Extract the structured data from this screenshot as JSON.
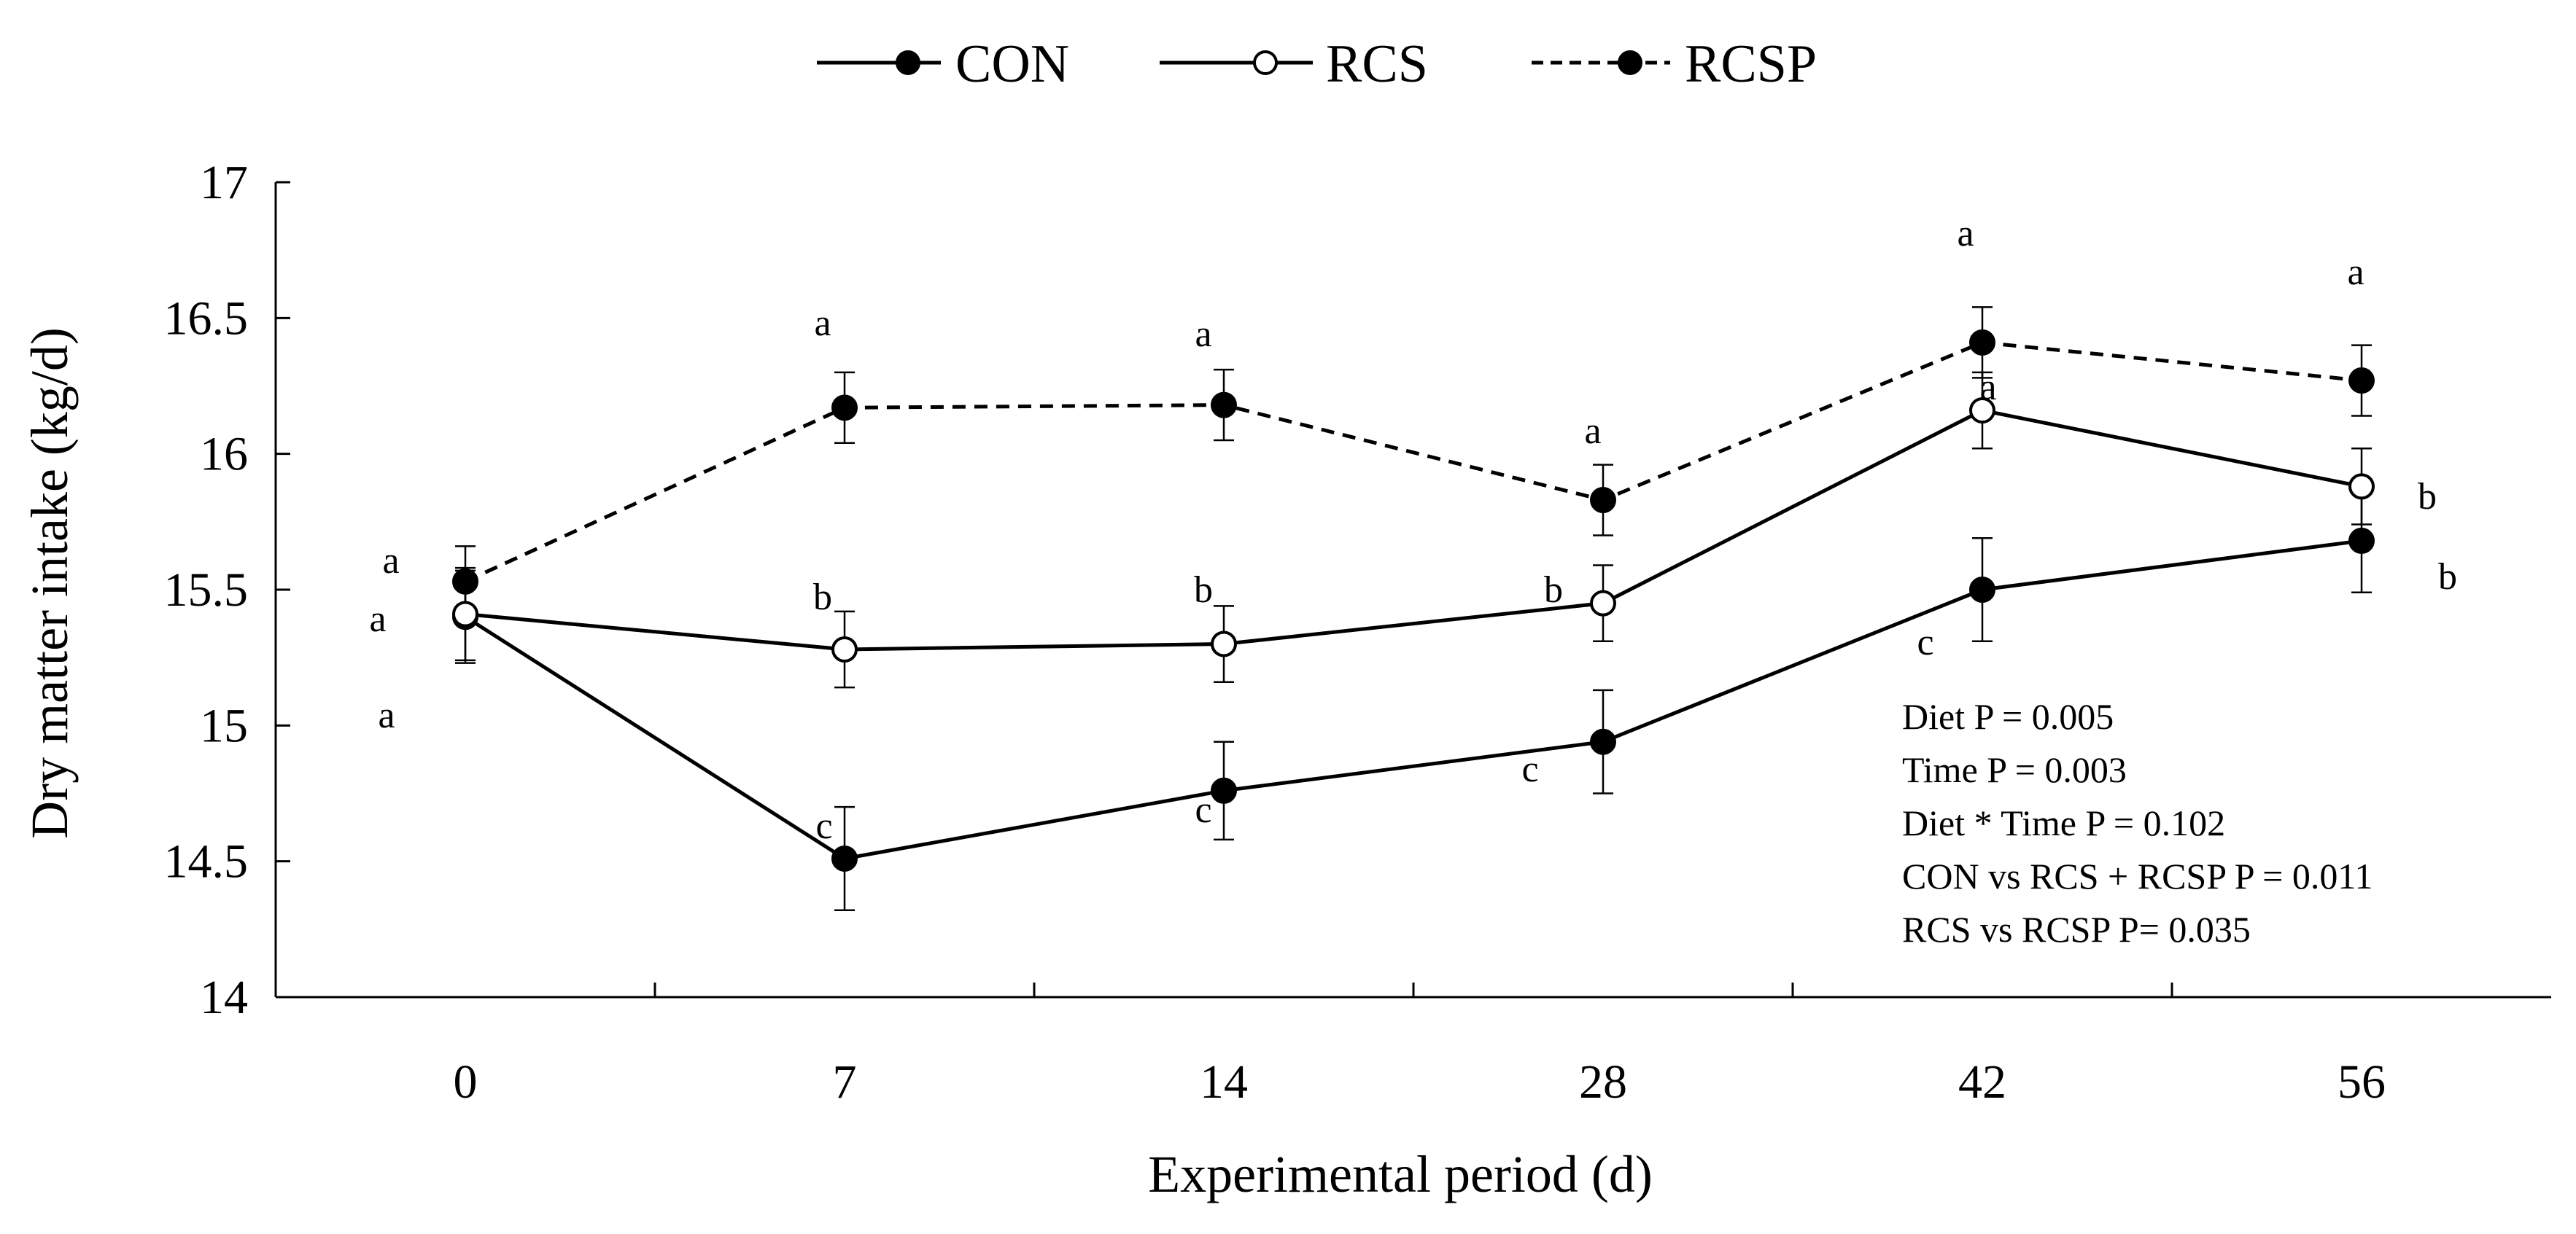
{
  "chart_data": {
    "type": "line",
    "xlabel": "Experimental period (d)",
    "ylabel": "Dry matter intake (kg/d)",
    "categories": [
      "0",
      "7",
      "14",
      "28",
      "42",
      "56"
    ],
    "ylim": [
      14,
      17
    ],
    "yticks": [
      "14",
      "14.5",
      "15",
      "15.5",
      "16",
      "16.5",
      "17"
    ],
    "legend_position": "top-center",
    "series": [
      {
        "name": "CON",
        "style": "solid",
        "marker": "filled",
        "values": [
          15.4,
          14.51,
          14.76,
          14.94,
          15.5,
          15.68
        ],
        "errors": [
          0.17,
          0.19,
          0.18,
          0.19,
          0.19,
          0.19
        ],
        "letters": [
          "a",
          "c",
          "c",
          "c",
          "c",
          "b"
        ]
      },
      {
        "name": "RCS",
        "style": "solid",
        "marker": "open",
        "values": [
          15.41,
          15.28,
          15.3,
          15.45,
          16.16,
          15.88
        ],
        "errors": [
          0.17,
          0.14,
          0.14,
          0.14,
          0.14,
          0.14
        ],
        "letters": [
          "a",
          "b",
          "b",
          "b",
          "a",
          "b"
        ]
      },
      {
        "name": "RCSP",
        "style": "dashed",
        "marker": "filled",
        "values": [
          15.53,
          16.17,
          16.18,
          15.83,
          16.41,
          16.27
        ],
        "errors": [
          0.13,
          0.13,
          0.13,
          0.13,
          0.13,
          0.13
        ],
        "letters": [
          "a",
          "a",
          "a",
          "a",
          "a",
          "a"
        ]
      }
    ],
    "annotations": [
      "Diet P = 0.005",
      "Time P = 0.003",
      "Diet * Time P = 0.102",
      "CON vs RCS + RCSP P = 0.011",
      "RCS vs RCSP  P= 0.035"
    ]
  },
  "colors": {
    "ink": "#000000",
    "background": "#ffffff"
  }
}
